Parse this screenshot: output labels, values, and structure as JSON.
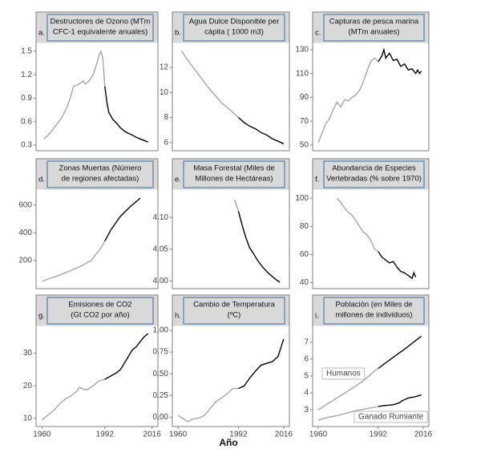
{
  "xlabel": "Año",
  "chart_data": [
    {
      "type": "line",
      "label": "a.",
      "title": [
        "Destructores de Ozono (MTm",
        "CFC-1 equivalente anuales)"
      ],
      "xlim": [
        1957,
        2019
      ],
      "highlight_from": 1992,
      "colors": [
        "#a6a6a6",
        "#000000"
      ],
      "x": [
        1961,
        1964,
        1967,
        1970,
        1973,
        1975,
        1976,
        1978,
        1980,
        1981,
        1982,
        1984,
        1986,
        1988,
        1989,
        1990,
        1991,
        1992,
        1993,
        1994,
        1996,
        1998,
        2000,
        2002,
        2004,
        2006,
        2008,
        2010,
        2012,
        2014
      ],
      "series": [
        {
          "values": [
            0.38,
            0.45,
            0.55,
            0.65,
            0.8,
            0.95,
            1.05,
            1.07,
            1.1,
            1.12,
            1.08,
            1.12,
            1.2,
            1.35,
            1.45,
            1.5,
            1.4,
            1.05,
            0.85,
            0.72,
            0.63,
            0.58,
            0.52,
            0.48,
            0.45,
            0.43,
            0.4,
            0.38,
            0.36,
            0.34
          ]
        }
      ],
      "ylim": [
        0.27,
        1.55
      ],
      "yticks": [
        0.3,
        0.6,
        0.9,
        1.2,
        1.5
      ]
    },
    {
      "type": "line",
      "label": "b.",
      "title": [
        "Agua Dulce Disponible per",
        "cápita ( 1000 m3)"
      ],
      "xlim": [
        1957,
        2019
      ],
      "highlight_from": 1992,
      "colors": [
        "#a6a6a6",
        "#000000"
      ],
      "x": [
        1962,
        1965,
        1968,
        1971,
        1974,
        1977,
        1980,
        1983,
        1986,
        1989,
        1992,
        1995,
        1998,
        2001,
        2004,
        2007,
        2010,
        2013,
        2016
      ],
      "series": [
        {
          "values": [
            13.3,
            12.6,
            12.0,
            11.4,
            10.8,
            10.2,
            9.7,
            9.2,
            8.8,
            8.4,
            8.0,
            7.6,
            7.3,
            7.1,
            6.8,
            6.6,
            6.3,
            6.1,
            5.9
          ]
        }
      ],
      "ylim": [
        5.6,
        13.6
      ],
      "yticks": [
        6,
        8,
        10,
        12
      ]
    },
    {
      "type": "line",
      "label": "c.",
      "title": [
        "Capturas de pesca marina",
        "(MTm anuales)"
      ],
      "xlim": [
        1957,
        2019
      ],
      "highlight_from": 1992,
      "colors": [
        "#a6a6a6",
        "#000000"
      ],
      "x": [
        1960,
        1962,
        1964,
        1966,
        1968,
        1970,
        1972,
        1974,
        1976,
        1978,
        1980,
        1982,
        1984,
        1986,
        1988,
        1990,
        1992,
        1994,
        1995,
        1996,
        1998,
        2000,
        2002,
        2004,
        2006,
        2008,
        2010,
        2012,
        2013,
        2014,
        2015
      ],
      "series": [
        {
          "values": [
            52,
            60,
            68,
            72,
            80,
            86,
            82,
            88,
            87,
            90,
            92,
            96,
            103,
            112,
            120,
            123,
            120,
            125,
            130,
            123,
            127,
            121,
            122,
            116,
            118,
            113,
            114,
            110,
            113,
            110,
            112
          ]
        }
      ],
      "ylim": [
        48,
        132
      ],
      "yticks": [
        50,
        70,
        90,
        110,
        130
      ]
    },
    {
      "type": "line",
      "label": "d.",
      "title": [
        "Zonas Muertas (Número",
        "de regiones afectadas)"
      ],
      "xlim": [
        1957,
        2019
      ],
      "highlight_from": 1992,
      "colors": [
        "#a6a6a6",
        "#000000"
      ],
      "x": [
        1960,
        1965,
        1970,
        1975,
        1980,
        1985,
        1990,
        1992,
        1995,
        2000,
        2005,
        2010
      ],
      "series": [
        {
          "values": [
            50,
            75,
            100,
            130,
            160,
            200,
            290,
            340,
            420,
            520,
            590,
            650
          ]
        }
      ],
      "ylim": [
        20,
        680
      ],
      "yticks": [
        200,
        400,
        600
      ]
    },
    {
      "type": "line",
      "label": "e.",
      "title": [
        "Masa Forestal (Miles de",
        "Millones de Hectáreas)"
      ],
      "xlim": [
        1957,
        2019
      ],
      "highlight_from": 1992,
      "colors": [
        "#a6a6a6",
        "#000000"
      ],
      "x": [
        1990,
        1992,
        1994,
        1996,
        1998,
        2000,
        2002,
        2004,
        2006,
        2008,
        2010,
        2012,
        2014
      ],
      "series": [
        {
          "values": [
            4.128,
            4.11,
            4.088,
            4.068,
            4.052,
            4.043,
            4.033,
            4.025,
            4.018,
            4.012,
            4.007,
            4.002,
            3.998
          ]
        }
      ],
      "ylim": [
        3.993,
        4.137
      ],
      "yticks": [
        {
          "value": 4,
          "label": "4.00"
        },
        4.05,
        {
          "value": 4.1,
          "label": "4.10"
        }
      ]
    },
    {
      "type": "line",
      "label": "f.",
      "title": [
        "Abundancia de Especies",
        "Vertebradas (% sobre 1970)"
      ],
      "xlim": [
        1957,
        2019
      ],
      "highlight_from": 1992,
      "colors": [
        "#a6a6a6",
        "#000000"
      ],
      "x": [
        1970,
        1972,
        1974,
        1976,
        1978,
        1980,
        1982,
        1984,
        1986,
        1988,
        1990,
        1992,
        1994,
        1996,
        1998,
        2000,
        2002,
        2004,
        2006,
        2008,
        2010,
        2011,
        2012
      ],
      "series": [
        {
          "values": [
            100,
            97,
            93,
            90,
            88,
            84,
            80,
            76,
            74,
            70,
            64,
            62,
            58,
            56,
            54,
            55,
            51,
            48,
            47,
            45,
            43,
            47,
            44
          ]
        }
      ],
      "ylim": [
        38,
        103
      ],
      "yticks": [
        40,
        60,
        80,
        100
      ]
    },
    {
      "type": "line",
      "label": "g.",
      "title": [
        "Emisiones de CO2",
        "(Gt CO2 por año)"
      ],
      "xlim": [
        1957,
        2019
      ],
      "xticks": [
        1960,
        1992,
        2016
      ],
      "highlight_from": 1992,
      "colors": [
        "#a6a6a6",
        "#000000"
      ],
      "x": [
        1960,
        1963,
        1966,
        1969,
        1972,
        1975,
        1978,
        1979,
        1981,
        1983,
        1986,
        1989,
        1992,
        1995,
        1998,
        2000,
        2002,
        2004,
        2006,
        2008,
        2010,
        2012,
        2014
      ],
      "series": [
        {
          "values": [
            9.5,
            11,
            12.5,
            14.5,
            16,
            17,
            18.5,
            19.5,
            19,
            18.8,
            20,
            21.5,
            22,
            23,
            24,
            25,
            27,
            29,
            31,
            32,
            33.5,
            35,
            36
          ]
        }
      ],
      "ylim": [
        8.5,
        37
      ],
      "yticks": [
        10,
        20,
        30
      ]
    },
    {
      "type": "line",
      "label": "h.",
      "title": [
        "Cambio de Temperatura",
        "(ºC)"
      ],
      "xlim": [
        1957,
        2019
      ],
      "xticks": [
        1960,
        1992,
        2016
      ],
      "highlight_from": 1992,
      "colors": [
        "#a6a6a6",
        "#000000"
      ],
      "x": [
        1960,
        1963,
        1965,
        1968,
        1971,
        1974,
        1977,
        1980,
        1983,
        1986,
        1989,
        1992,
        1995,
        1998,
        2001,
        2004,
        2007,
        2010,
        2013,
        2016
      ],
      "series": [
        {
          "values": [
            0.02,
            -0.02,
            -0.05,
            -0.02,
            -0.01,
            0.02,
            0.1,
            0.18,
            0.22,
            0.27,
            0.33,
            0.33,
            0.36,
            0.45,
            0.53,
            0.6,
            0.62,
            0.64,
            0.7,
            0.9
          ]
        }
      ],
      "ylim": [
        -0.07,
        1.0
      ],
      "yticks": [
        {
          "value": 0,
          "label": "0.00"
        },
        0.25,
        {
          "value": 0.5,
          "label": "0.50"
        },
        0.75,
        {
          "value": 1,
          "label": "1.00"
        }
      ]
    },
    {
      "type": "line",
      "label": "i.",
      "title": [
        "Población (en Miles de",
        "millones de individuos)"
      ],
      "xlim": [
        1957,
        2019
      ],
      "xticks": [
        1960,
        1992,
        2016
      ],
      "highlight_from": 1992,
      "colors": [
        "#a6a6a6",
        "#000000"
      ],
      "x": [
        1960,
        1965,
        1970,
        1975,
        1980,
        1985,
        1990,
        1992,
        1995,
        2000,
        2003,
        2005,
        2008,
        2012,
        2015
      ],
      "series": [
        {
          "name": "Humanos",
          "values": [
            3.0,
            3.35,
            3.7,
            4.05,
            4.4,
            4.8,
            5.3,
            5.45,
            5.7,
            6.1,
            6.35,
            6.5,
            6.75,
            7.1,
            7.35
          ]
        },
        {
          "name": "Ganado Rumiante",
          "values": [
            2.4,
            2.55,
            2.65,
            2.8,
            2.95,
            3.05,
            3.15,
            3.2,
            3.25,
            3.3,
            3.4,
            3.55,
            3.7,
            3.78,
            3.88
          ]
        }
      ],
      "ylim": [
        2.2,
        7.7
      ],
      "yticks": [
        3,
        4,
        5,
        6,
        7
      ]
    }
  ]
}
